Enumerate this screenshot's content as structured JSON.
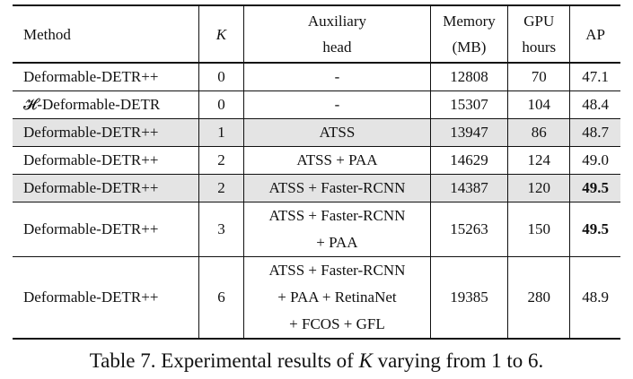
{
  "table": {
    "headers": {
      "method": "Method",
      "k": "K",
      "aux_line1": "Auxiliary",
      "aux_line2": "head",
      "mem_line1": "Memory",
      "mem_line2": "(MB)",
      "gpu_line1": "GPU",
      "gpu_line2": "hours",
      "ap": "AP"
    },
    "rows": [
      {
        "method": "Deformable-DETR++",
        "k": "0",
        "aux": [
          "-"
        ],
        "memory": "12808",
        "gpu": "70",
        "ap": "47.1",
        "ap_bold": false,
        "shaded": false
      },
      {
        "method": "𝓗-Deformable-DETR",
        "k": "0",
        "aux": [
          "-"
        ],
        "memory": "15307",
        "gpu": "104",
        "ap": "48.4",
        "ap_bold": false,
        "shaded": false
      },
      {
        "method": "Deformable-DETR++",
        "k": "1",
        "aux": [
          "ATSS"
        ],
        "memory": "13947",
        "gpu": "86",
        "ap": "48.7",
        "ap_bold": false,
        "shaded": true
      },
      {
        "method": "Deformable-DETR++",
        "k": "2",
        "aux": [
          "ATSS + PAA"
        ],
        "memory": "14629",
        "gpu": "124",
        "ap": "49.0",
        "ap_bold": false,
        "shaded": false
      },
      {
        "method": "Deformable-DETR++",
        "k": "2",
        "aux": [
          "ATSS + Faster-RCNN"
        ],
        "memory": "14387",
        "gpu": "120",
        "ap": "49.5",
        "ap_bold": true,
        "shaded": true
      },
      {
        "method": "Deformable-DETR++",
        "k": "3",
        "aux": [
          "ATSS + Faster-RCNN",
          "+ PAA"
        ],
        "memory": "15263",
        "gpu": "150",
        "ap": "49.5",
        "ap_bold": true,
        "shaded": false
      },
      {
        "method": "Deformable-DETR++",
        "k": "6",
        "aux": [
          "ATSS + Faster-RCNN",
          "+ PAA + RetinaNet",
          "+ FCOS + GFL"
        ],
        "memory": "19385",
        "gpu": "280",
        "ap": "48.9",
        "ap_bold": false,
        "shaded": false
      }
    ]
  },
  "caption": {
    "prefix": "Table 7. Experimental results of ",
    "var": "K",
    "suffix": " varying from 1 to 6."
  }
}
